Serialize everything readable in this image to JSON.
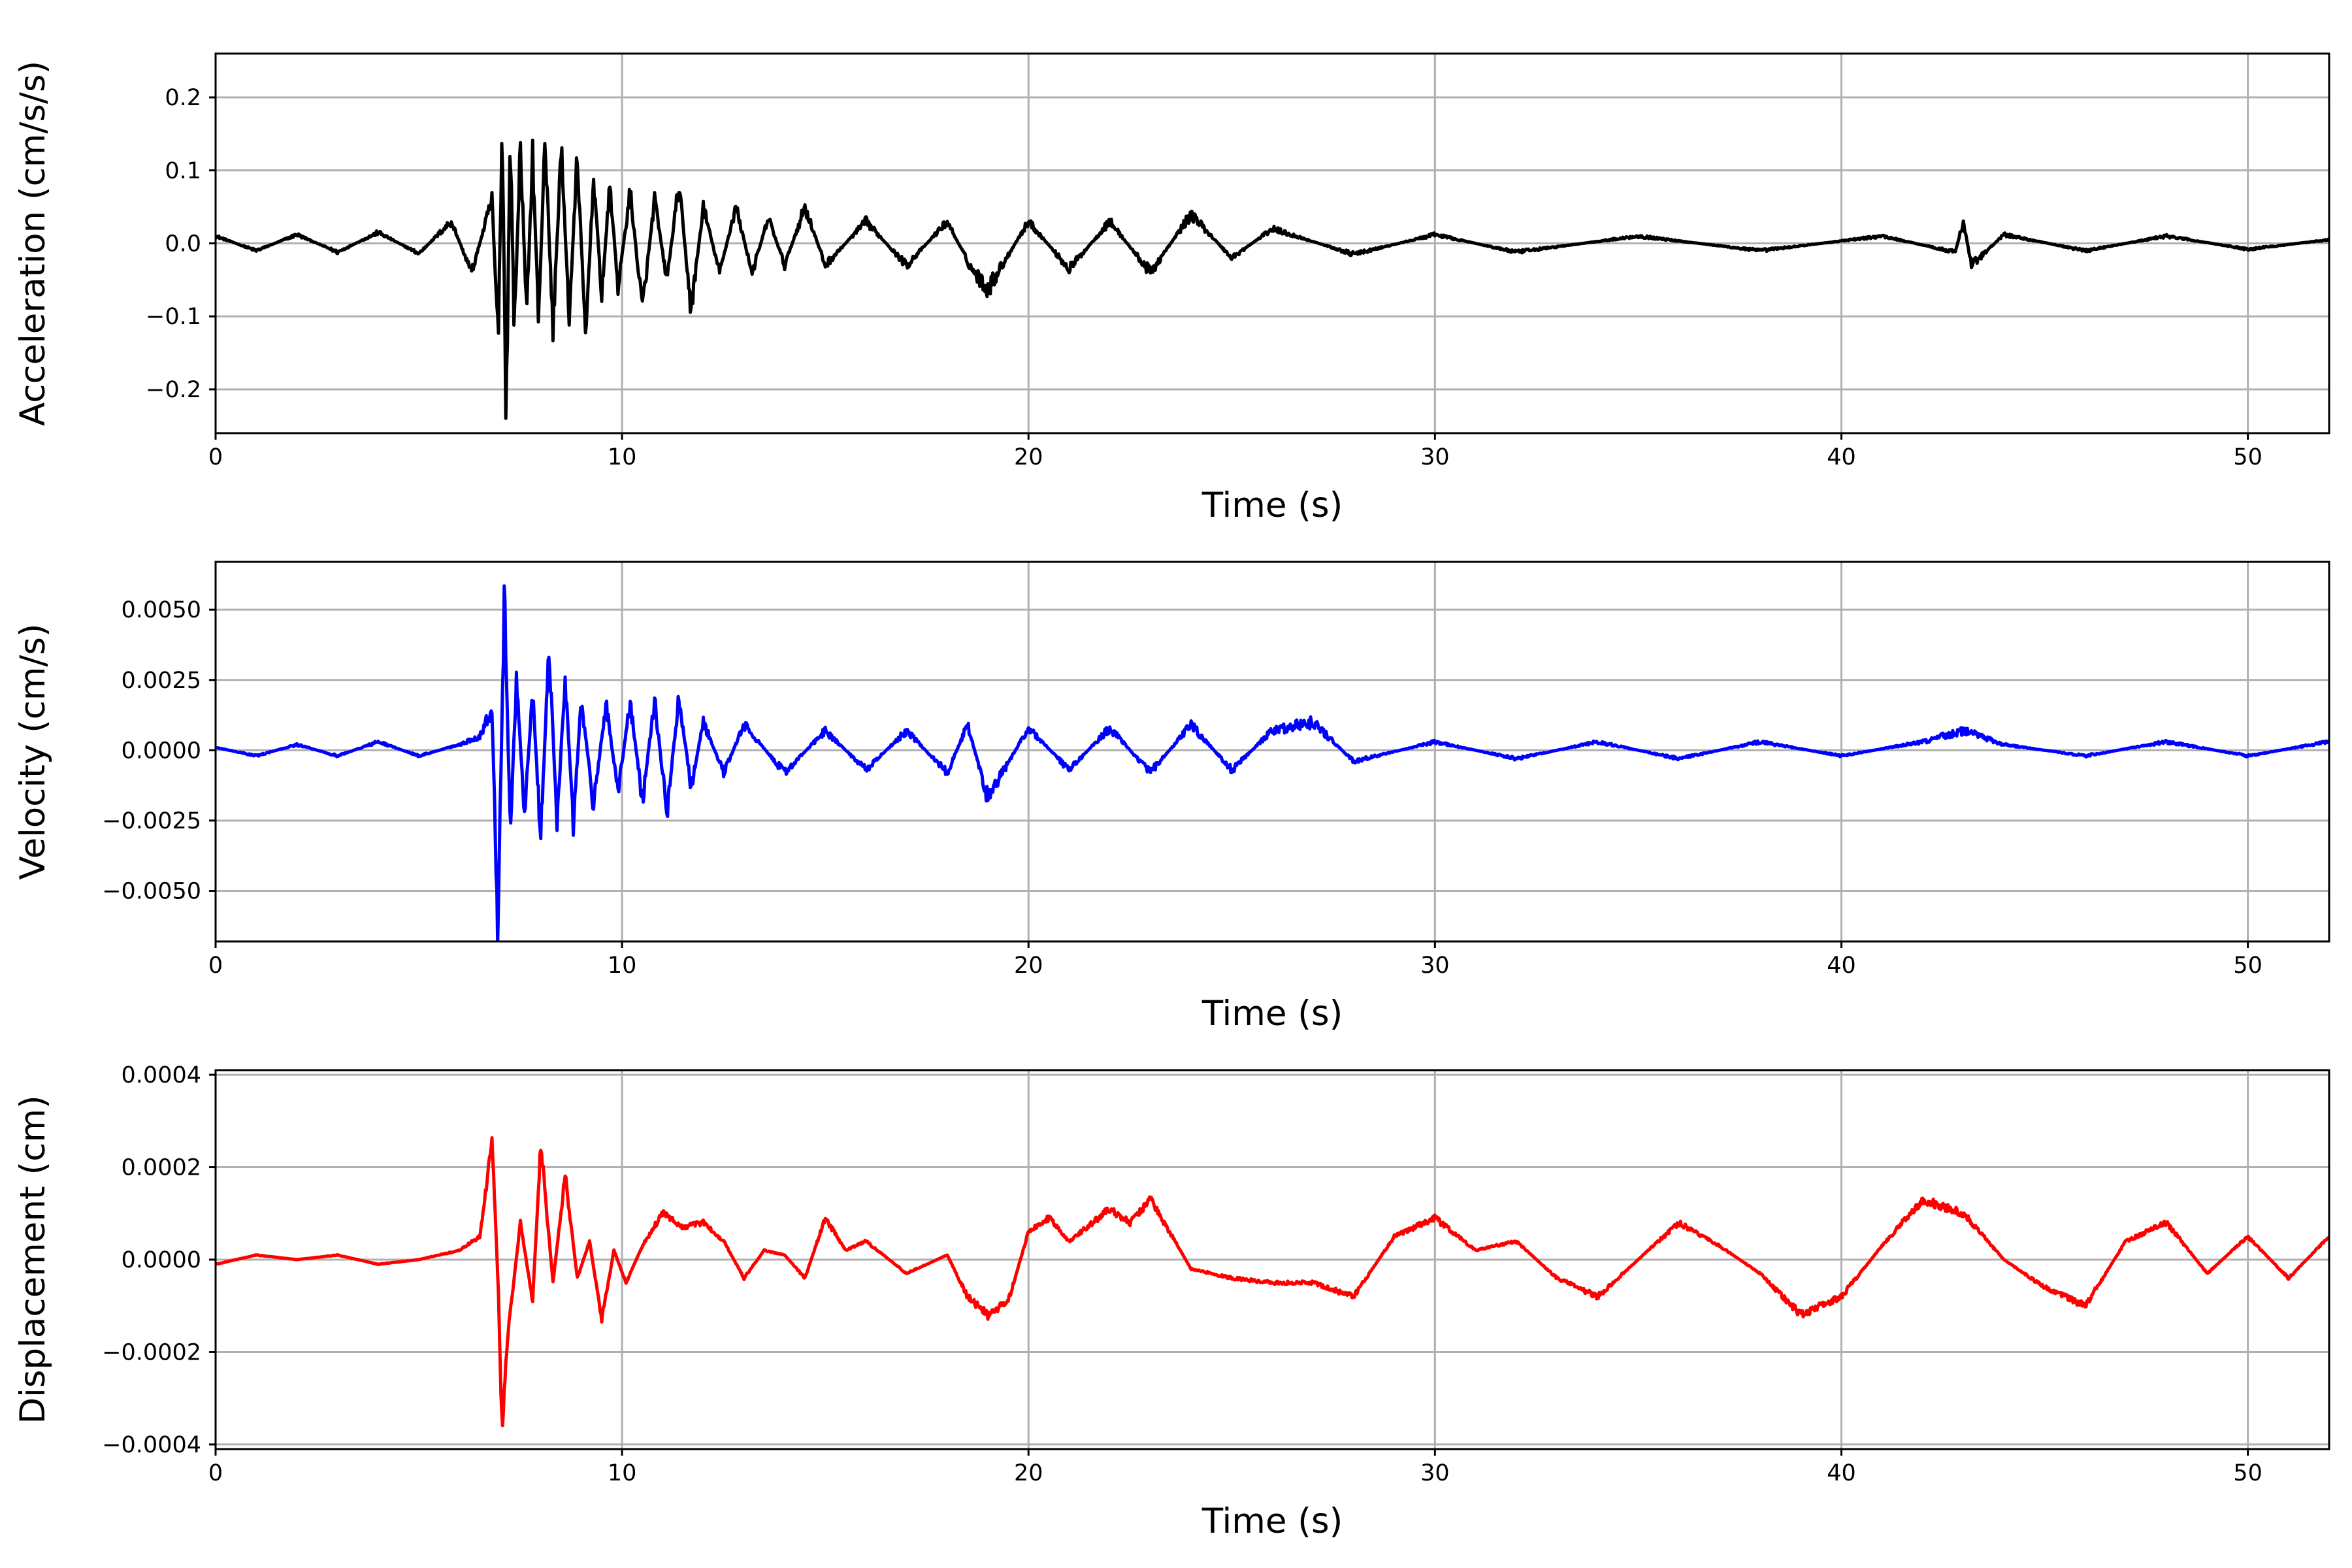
{
  "chart_data": [
    {
      "type": "line",
      "xlabel": "Time (s)",
      "ylabel": "Acceleration (cm/s/s)",
      "xlim": [
        0,
        52
      ],
      "ylim": [
        -0.26,
        0.26
      ],
      "x_ticks": [
        0,
        10,
        20,
        30,
        40,
        50
      ],
      "x_tick_labels": [
        "0",
        "10",
        "20",
        "30",
        "40",
        "50"
      ],
      "y_ticks": [
        -0.2,
        -0.1,
        0.0,
        0.1,
        0.2
      ],
      "y_tick_labels": [
        "−0.2",
        "−0.1",
        "0.0",
        "0.1",
        "0.2"
      ],
      "grid": true,
      "color": "#000000",
      "series": [
        {
          "x": [
            0,
            1,
            2,
            3,
            4,
            5,
            5.8,
            6.3,
            6.8,
            6.95,
            7.05,
            7.15,
            7.25,
            7.35,
            7.5,
            7.65,
            7.8,
            7.95,
            8.1,
            8.3,
            8.5,
            8.7,
            8.9,
            9.1,
            9.3,
            9.5,
            9.7,
            9.9,
            10.2,
            10.5,
            10.8,
            11.1,
            11.4,
            11.7,
            12.0,
            12.4,
            12.8,
            13.2,
            13.6,
            14.0,
            14.5,
            15,
            16,
            17,
            18,
            18.6,
            19,
            20,
            21,
            22,
            23,
            24,
            25,
            26,
            28,
            30,
            32,
            35,
            38,
            41,
            42.8,
            43.0,
            43.2,
            44,
            46,
            48,
            50,
            52
          ],
          "y": [
            0.01,
            -0.01,
            0.012,
            -0.012,
            0.015,
            -0.014,
            0.03,
            -0.04,
            0.06,
            -0.13,
            0.155,
            -0.235,
            0.15,
            -0.12,
            0.14,
            -0.1,
            0.12,
            -0.11,
            0.15,
            -0.12,
            0.13,
            -0.1,
            0.12,
            -0.13,
            0.09,
            -0.07,
            0.08,
            -0.06,
            0.07,
            -0.09,
            0.06,
            -0.05,
            0.08,
            -0.09,
            0.05,
            -0.04,
            0.05,
            -0.04,
            0.035,
            -0.03,
            0.05,
            -0.03,
            0.03,
            -0.03,
            0.03,
            -0.035,
            -0.062,
            0.03,
            -0.035,
            0.03,
            -0.04,
            0.04,
            -0.02,
            0.02,
            -0.015,
            0.012,
            -0.012,
            0.01,
            -0.01,
            0.01,
            -0.012,
            0.03,
            -0.03,
            0.012,
            -0.01,
            0.01,
            -0.008,
            0.005
          ]
        }
      ]
    },
    {
      "type": "line",
      "xlabel": "Time (s)",
      "ylabel": "Velocity (cm/s)",
      "xlim": [
        0,
        52
      ],
      "ylim": [
        -0.0068,
        0.0067
      ],
      "x_ticks": [
        0,
        10,
        20,
        30,
        40,
        50
      ],
      "x_tick_labels": [
        "0",
        "10",
        "20",
        "30",
        "40",
        "50"
      ],
      "y_ticks": [
        -0.005,
        -0.0025,
        0.0,
        0.0025,
        0.005
      ],
      "y_tick_labels": [
        "−0.0050",
        "−0.0025",
        "0.0000",
        "0.0025",
        "0.0050"
      ],
      "grid": true,
      "color": "#0000ff",
      "series": [
        {
          "x": [
            0,
            1,
            2,
            3,
            4,
            5,
            6,
            6.5,
            6.8,
            6.95,
            7.1,
            7.25,
            7.4,
            7.6,
            7.8,
            8.0,
            8.2,
            8.4,
            8.6,
            8.8,
            9.0,
            9.3,
            9.6,
            9.9,
            10.2,
            10.5,
            10.8,
            11.1,
            11.4,
            11.7,
            12,
            12.5,
            13,
            14,
            15,
            16,
            17,
            18,
            18.5,
            19,
            20,
            21,
            22,
            23,
            24,
            25,
            26,
            27,
            28,
            30,
            32,
            34,
            36,
            38,
            40,
            42,
            43,
            44,
            46,
            48,
            50,
            52
          ],
          "y": [
            0.0001,
            -0.0002,
            0.0002,
            -0.0002,
            0.0003,
            -0.0002,
            0.0002,
            0.0005,
            0.0015,
            -0.0062,
            0.0055,
            -0.0028,
            0.0025,
            -0.0022,
            0.002,
            -0.003,
            0.0036,
            -0.0025,
            0.0026,
            -0.0025,
            0.0018,
            -0.002,
            0.0017,
            -0.0015,
            0.0017,
            -0.0018,
            0.0018,
            -0.0022,
            0.0019,
            -0.0013,
            0.001,
            -0.0008,
            0.0009,
            -0.0008,
            0.0007,
            -0.0007,
            0.0007,
            -0.0008,
            0.0009,
            -0.0017,
            0.0008,
            -0.0007,
            0.0008,
            -0.0008,
            0.0009,
            -0.0007,
            0.0007,
            0.001,
            -0.0004,
            0.0003,
            -0.0003,
            0.0003,
            -0.0003,
            0.0003,
            -0.0002,
            0.0003,
            0.0007,
            0.0002,
            -0.0002,
            0.0003,
            -0.0002,
            0.0003
          ]
        }
      ]
    },
    {
      "type": "line",
      "xlabel": "Time (s)",
      "ylabel": "Displacement (cm)",
      "xlim": [
        0,
        52
      ],
      "ylim": [
        -0.00041,
        0.00041
      ],
      "x_ticks": [
        0,
        10,
        20,
        30,
        40,
        50
      ],
      "x_tick_labels": [
        "0",
        "10",
        "20",
        "30",
        "40",
        "50"
      ],
      "y_ticks": [
        -0.0004,
        -0.0002,
        0.0,
        0.0002,
        0.0004
      ],
      "y_tick_labels": [
        "−0.0004",
        "−0.0002",
        "0.0000",
        "0.0002",
        "0.0004"
      ],
      "grid": true,
      "color": "#ff0000",
      "series": [
        {
          "x": [
            0,
            1,
            2,
            3,
            4,
            5,
            6,
            6.5,
            6.8,
            6.95,
            7.05,
            7.2,
            7.5,
            7.8,
            8.0,
            8.3,
            8.6,
            8.9,
            9.2,
            9.5,
            9.8,
            10.1,
            10.5,
            11,
            11.5,
            12,
            12.5,
            13,
            13.5,
            14,
            14.5,
            15,
            15.5,
            16,
            17,
            18,
            18.5,
            19,
            19.5,
            20,
            20.5,
            21,
            22,
            22.5,
            23,
            24,
            25,
            26,
            27,
            28,
            29,
            30,
            31,
            32,
            33,
            34,
            35,
            36,
            37,
            38,
            39,
            40,
            41,
            42,
            43,
            44,
            45,
            46,
            47,
            48,
            49,
            50,
            51,
            52
          ],
          "y": [
            -1e-05,
            1e-05,
            0.0,
            1e-05,
            -1e-05,
            0.0,
            2e-05,
            5e-05,
            0.00026,
            -5e-05,
            -0.00037,
            -0.00015,
            8e-05,
            -9e-05,
            0.00025,
            -5e-05,
            0.00018,
            -4e-05,
            4e-05,
            -0.00013,
            2e-05,
            -5e-05,
            3e-05,
            0.0001,
            7e-05,
            8e-05,
            4e-05,
            -4e-05,
            2e-05,
            1e-05,
            -4e-05,
            9e-05,
            2e-05,
            4e-05,
            -3e-05,
            1e-05,
            -8e-05,
            -0.00012,
            -9e-05,
            6e-05,
            9e-05,
            4e-05,
            0.00011,
            8e-05,
            0.00013,
            -2e-05,
            -4e-05,
            -5e-05,
            -5e-05,
            -8e-05,
            5e-05,
            9e-05,
            2e-05,
            4e-05,
            -4e-05,
            -8e-05,
            0.0,
            8e-05,
            3e-05,
            -3e-05,
            -0.00012,
            -8e-05,
            3e-05,
            0.00013,
            0.0001,
            0.0,
            -6e-05,
            -0.0001,
            4e-05,
            8e-05,
            -3e-05,
            5e-05,
            -4e-05,
            5e-05
          ]
        }
      ]
    }
  ]
}
